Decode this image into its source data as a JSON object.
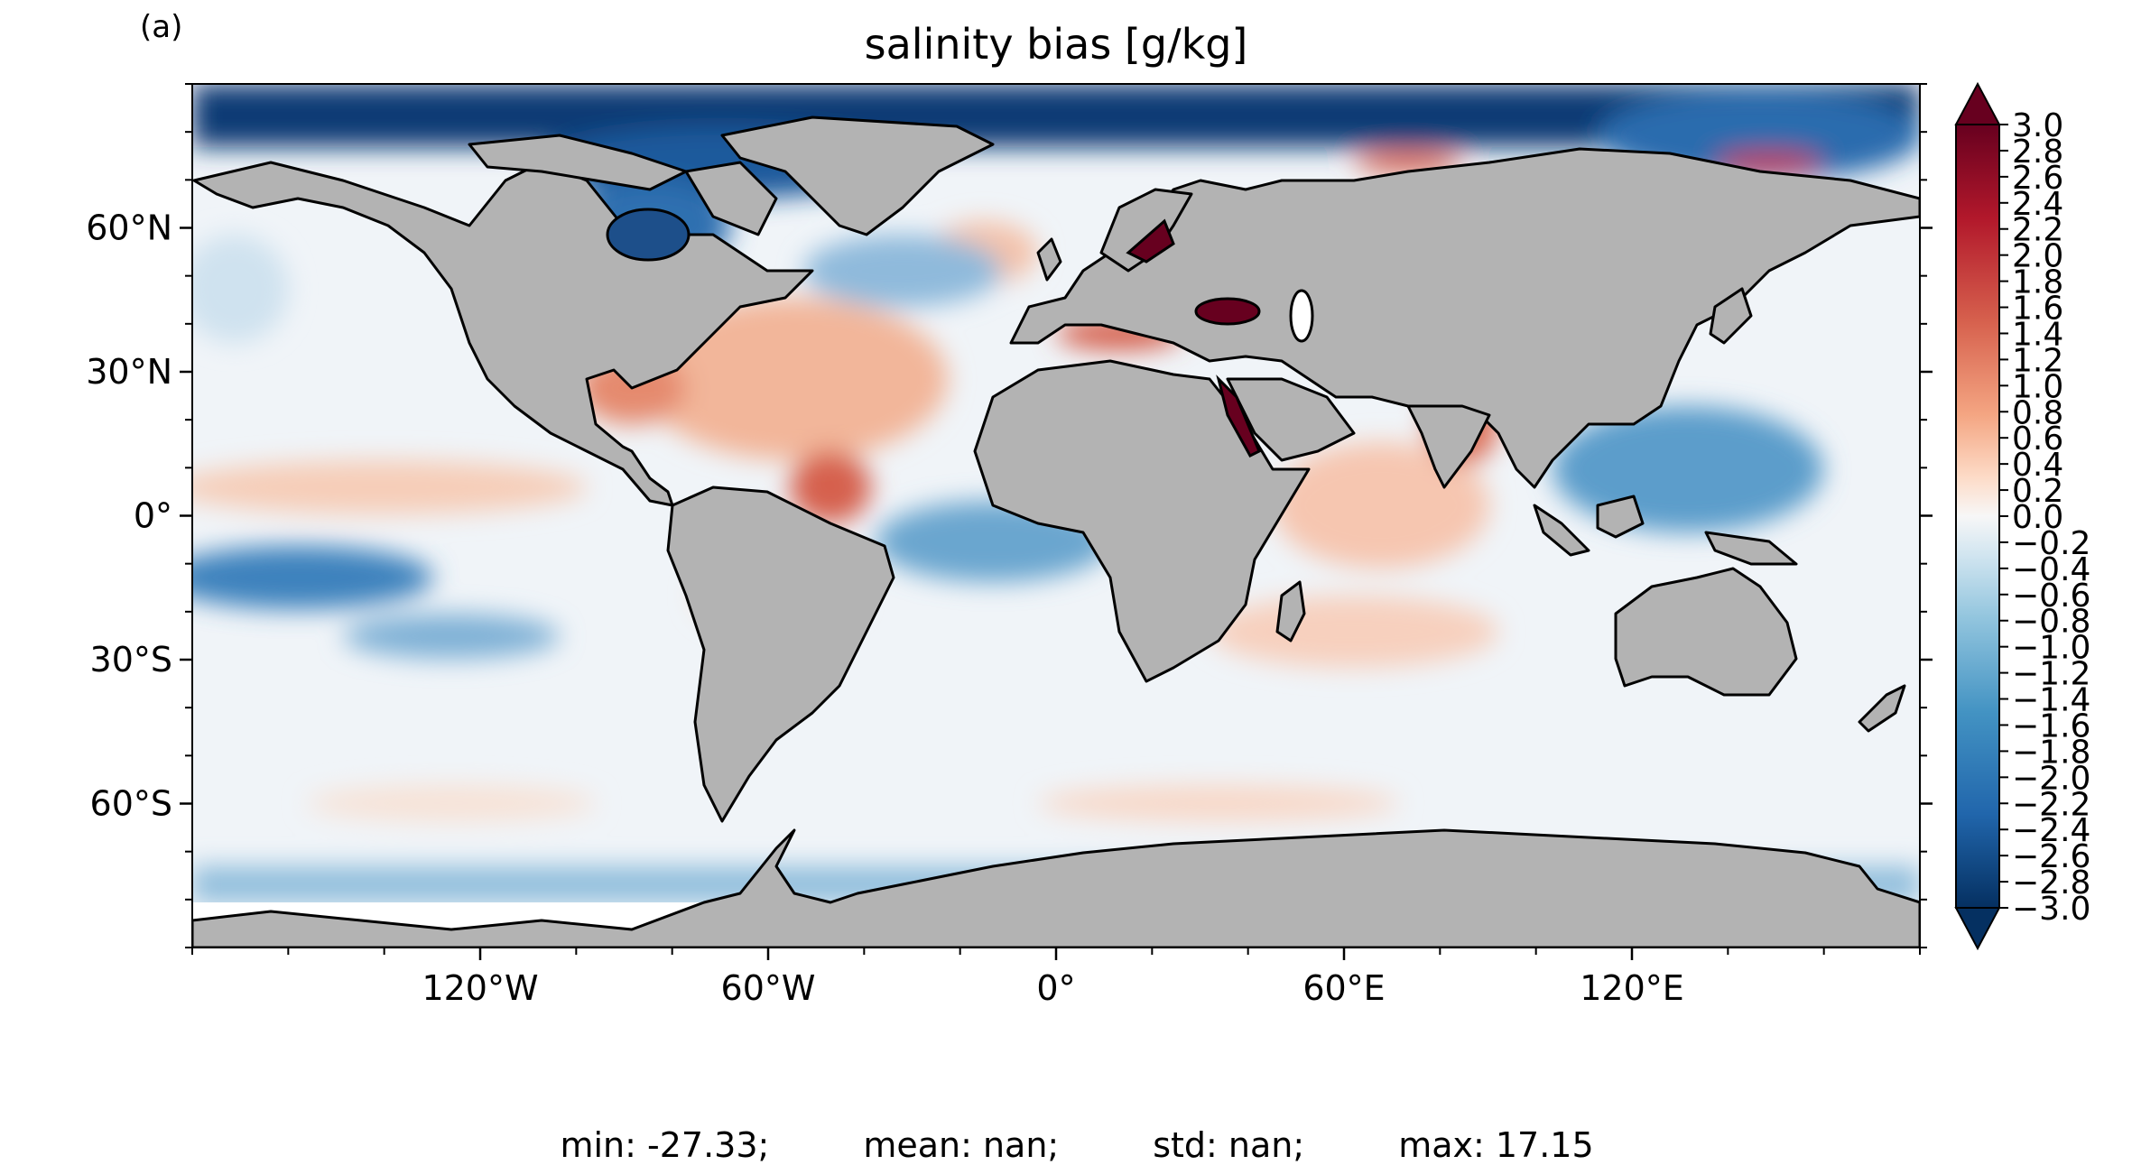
{
  "figure": {
    "panel_label": "(a)",
    "title": "salinity bias [g/kg]"
  },
  "map": {
    "projection": "equirectangular",
    "lon_ticks": [
      "120°W",
      "60°W",
      "0°",
      "60°E",
      "120°E"
    ],
    "lat_ticks": [
      "60°N",
      "30°N",
      "0°",
      "30°S",
      "60°S"
    ],
    "land_color": "#b3b3b3",
    "coastline_color": "#000000"
  },
  "colorbar": {
    "colormap": "RdBu_r",
    "extend": "both",
    "min": -3.0,
    "max": 3.0,
    "tick_labels": [
      "3.0",
      "2.8",
      "2.6",
      "2.4",
      "2.2",
      "2.0",
      "1.8",
      "1.6",
      "1.4",
      "1.2",
      "1.0",
      "0.8",
      "0.6",
      "0.4",
      "0.2",
      "0.0",
      "−0.2",
      "−0.4",
      "−0.6",
      "−0.8",
      "−1.0",
      "−1.2",
      "−1.4",
      "−1.6",
      "−1.8",
      "−2.0",
      "−2.2",
      "−2.4",
      "−2.6",
      "−2.8",
      "−3.0"
    ],
    "colors": {
      "high": "#67001f",
      "mid_high": "#d6604d",
      "light_high": "#fddbc7",
      "center": "#f7f7f7",
      "light_low": "#d1e5f0",
      "mid_low": "#4393c3",
      "low": "#053061"
    }
  },
  "stats": {
    "min": "min: -27.33;",
    "mean": "mean: nan;",
    "std": "std: nan;",
    "max": "max: 17.15"
  }
}
